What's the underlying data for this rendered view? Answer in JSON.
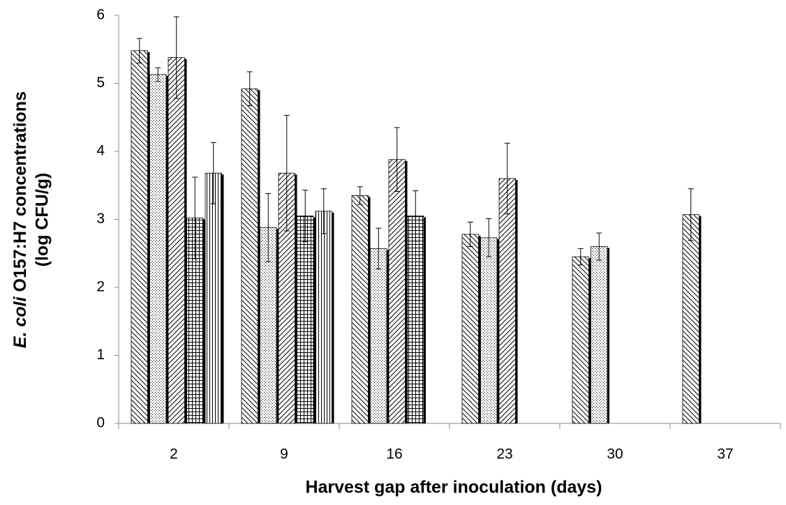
{
  "chart_data": {
    "type": "bar",
    "xlabel": "Harvest gap after inoculation (days)",
    "ylabel": [
      "E. coli",
      " O157:H7 concentrations",
      "(log CFU/g)"
    ],
    "categories": [
      "2",
      "9",
      "16",
      "23",
      "30",
      "37"
    ],
    "series": [
      {
        "pattern": "diagonal-back",
        "values": [
          5.48,
          4.92,
          3.35,
          2.78,
          2.45,
          3.07
        ],
        "errors": [
          0.18,
          0.25,
          0.13,
          0.18,
          0.12,
          0.38
        ]
      },
      {
        "pattern": "dots",
        "values": [
          5.13,
          2.88,
          2.57,
          2.73,
          2.6,
          null
        ],
        "errors": [
          0.1,
          0.5,
          0.3,
          0.28,
          0.2,
          null
        ]
      },
      {
        "pattern": "diagonal-forward",
        "values": [
          5.38,
          3.68,
          3.88,
          3.6,
          null,
          null
        ],
        "errors": [
          0.6,
          0.85,
          0.47,
          0.52,
          null,
          null
        ]
      },
      {
        "pattern": "grid",
        "values": [
          3.02,
          3.05,
          3.05,
          null,
          null,
          null
        ],
        "errors": [
          0.6,
          0.38,
          0.37,
          null,
          null,
          null
        ]
      },
      {
        "pattern": "vertical",
        "values": [
          3.68,
          3.12,
          null,
          null,
          null,
          null
        ],
        "errors": [
          0.45,
          0.33,
          null,
          null,
          null,
          null
        ]
      }
    ],
    "ylim": [
      0,
      6
    ],
    "yticks": [
      0,
      1,
      2,
      3,
      4,
      5,
      6
    ],
    "grid": false
  }
}
